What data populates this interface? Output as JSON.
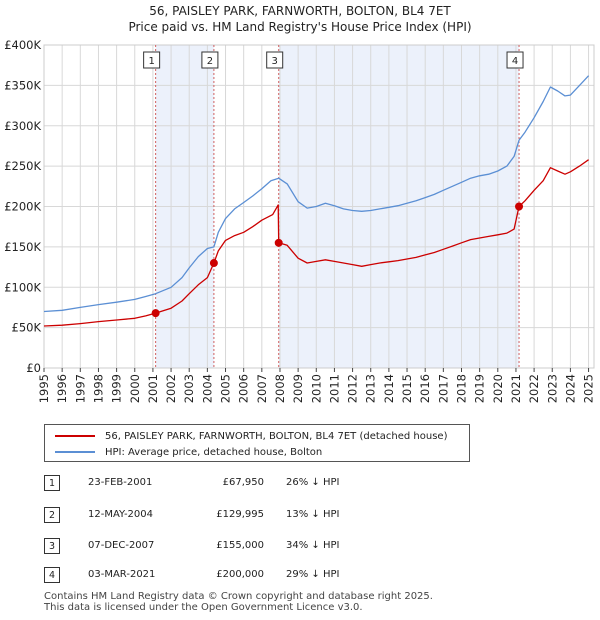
{
  "chart_data": {
    "type": "line",
    "title": "56, PAISLEY PARK, FARNWORTH, BOLTON, BL4 7ET",
    "subtitle": "Price paid vs. HM Land Registry's House Price Index (HPI)",
    "xlabel": "",
    "ylabel": "",
    "xlim": [
      1995,
      2025.3
    ],
    "ylim": [
      0,
      400000
    ],
    "y_ticks": [
      {
        "value": 0,
        "label": "£0"
      },
      {
        "value": 50000,
        "label": "£50K"
      },
      {
        "value": 100000,
        "label": "£100K"
      },
      {
        "value": 150000,
        "label": "£150K"
      },
      {
        "value": 200000,
        "label": "£200K"
      },
      {
        "value": 250000,
        "label": "£250K"
      },
      {
        "value": 300000,
        "label": "£300K"
      },
      {
        "value": 350000,
        "label": "£350K"
      },
      {
        "value": 400000,
        "label": "£400K"
      }
    ],
    "x_ticks": [
      "1995",
      "1996",
      "1997",
      "1998",
      "1999",
      "2000",
      "2001",
      "2002",
      "2003",
      "2004",
      "2005",
      "2006",
      "2007",
      "2008",
      "2009",
      "2010",
      "2011",
      "2012",
      "2013",
      "2014",
      "2015",
      "2016",
      "2017",
      "2018",
      "2019",
      "2020",
      "2021",
      "2022",
      "2023",
      "2024",
      "2025"
    ],
    "shaded_ranges": [
      [
        2001.15,
        2004.36
      ],
      [
        2007.93,
        2021.17
      ]
    ],
    "series": [
      {
        "name": "56, PAISLEY PARK, FARNWORTH, BOLTON, BL4 7ET (detached house)",
        "color": "#cc0000",
        "points": [
          [
            1995.0,
            52000
          ],
          [
            1996.0,
            53000
          ],
          [
            1997.0,
            55000
          ],
          [
            1998.0,
            57500
          ],
          [
            1999.0,
            59500
          ],
          [
            2000.0,
            61500
          ],
          [
            2000.6,
            64500
          ],
          [
            2001.15,
            67950
          ],
          [
            2002.0,
            74000
          ],
          [
            2002.6,
            83000
          ],
          [
            2003.0,
            92000
          ],
          [
            2003.5,
            103000
          ],
          [
            2004.0,
            112000
          ],
          [
            2004.36,
            129995
          ],
          [
            2004.6,
            145000
          ],
          [
            2005.0,
            158000
          ],
          [
            2005.5,
            164000
          ],
          [
            2006.0,
            168000
          ],
          [
            2006.5,
            175000
          ],
          [
            2007.0,
            183000
          ],
          [
            2007.6,
            190000
          ],
          [
            2007.9,
            202000
          ],
          [
            2007.93,
            155000
          ],
          [
            2008.4,
            152000
          ],
          [
            2009.0,
            136000
          ],
          [
            2009.5,
            130000
          ],
          [
            2010.0,
            132000
          ],
          [
            2010.5,
            134000
          ],
          [
            2011.0,
            132000
          ],
          [
            2011.5,
            130000
          ],
          [
            2012.0,
            128000
          ],
          [
            2012.5,
            126000
          ],
          [
            2013.0,
            128000
          ],
          [
            2013.5,
            130000
          ],
          [
            2014.0,
            131500
          ],
          [
            2014.5,
            133000
          ],
          [
            2015.0,
            135000
          ],
          [
            2015.5,
            137000
          ],
          [
            2016.0,
            140000
          ],
          [
            2016.5,
            143000
          ],
          [
            2017.0,
            147000
          ],
          [
            2017.5,
            151000
          ],
          [
            2018.0,
            155000
          ],
          [
            2018.5,
            159000
          ],
          [
            2019.0,
            161000
          ],
          [
            2019.5,
            163000
          ],
          [
            2020.0,
            165000
          ],
          [
            2020.5,
            167000
          ],
          [
            2020.9,
            172000
          ],
          [
            2021.17,
            200000
          ],
          [
            2021.5,
            207000
          ],
          [
            2022.0,
            220000
          ],
          [
            2022.5,
            232000
          ],
          [
            2022.9,
            248000
          ],
          [
            2023.3,
            244000
          ],
          [
            2023.7,
            240000
          ],
          [
            2024.0,
            243000
          ],
          [
            2024.5,
            250000
          ],
          [
            2025.0,
            258000
          ]
        ]
      },
      {
        "name": "HPI: Average price, detached house, Bolton",
        "color": "#5b8fd4",
        "points": [
          [
            1995.0,
            70000
          ],
          [
            1996.0,
            71500
          ],
          [
            1997.0,
            75000
          ],
          [
            1998.0,
            78500
          ],
          [
            1999.0,
            81500
          ],
          [
            2000.0,
            85000
          ],
          [
            2000.6,
            88500
          ],
          [
            2001.15,
            92000
          ],
          [
            2002.0,
            100000
          ],
          [
            2002.6,
            112000
          ],
          [
            2003.0,
            124000
          ],
          [
            2003.5,
            138000
          ],
          [
            2004.0,
            148000
          ],
          [
            2004.36,
            150000
          ],
          [
            2004.6,
            168000
          ],
          [
            2005.0,
            185000
          ],
          [
            2005.5,
            197000
          ],
          [
            2006.0,
            205000
          ],
          [
            2006.5,
            213000
          ],
          [
            2007.0,
            222000
          ],
          [
            2007.5,
            232000
          ],
          [
            2007.93,
            235000
          ],
          [
            2008.4,
            228000
          ],
          [
            2009.0,
            206000
          ],
          [
            2009.5,
            198000
          ],
          [
            2010.0,
            200000
          ],
          [
            2010.5,
            204000
          ],
          [
            2011.0,
            201000
          ],
          [
            2011.5,
            197000
          ],
          [
            2012.0,
            195000
          ],
          [
            2012.5,
            194000
          ],
          [
            2013.0,
            195000
          ],
          [
            2013.5,
            197000
          ],
          [
            2014.0,
            199000
          ],
          [
            2014.5,
            201000
          ],
          [
            2015.0,
            204000
          ],
          [
            2015.5,
            207000
          ],
          [
            2016.0,
            211000
          ],
          [
            2016.5,
            215000
          ],
          [
            2017.0,
            220000
          ],
          [
            2017.5,
            225000
          ],
          [
            2018.0,
            230000
          ],
          [
            2018.5,
            235000
          ],
          [
            2019.0,
            238000
          ],
          [
            2019.5,
            240000
          ],
          [
            2020.0,
            244000
          ],
          [
            2020.5,
            250000
          ],
          [
            2020.9,
            262000
          ],
          [
            2021.17,
            282000
          ],
          [
            2021.5,
            292000
          ],
          [
            2022.0,
            310000
          ],
          [
            2022.5,
            330000
          ],
          [
            2022.9,
            348000
          ],
          [
            2023.3,
            343000
          ],
          [
            2023.7,
            337000
          ],
          [
            2024.0,
            338000
          ],
          [
            2024.5,
            350000
          ],
          [
            2025.0,
            362000
          ]
        ]
      }
    ],
    "sales": [
      {
        "id": "1",
        "x": 2001.15,
        "y": 67950
      },
      {
        "id": "2",
        "x": 2004.36,
        "y": 129995
      },
      {
        "id": "3",
        "x": 2007.93,
        "y": 155000
      },
      {
        "id": "4",
        "x": 2021.17,
        "y": 200000
      }
    ]
  },
  "legend": {
    "property_label": "56, PAISLEY PARK, FARNWORTH, BOLTON, BL4 7ET (detached house)",
    "hpi_label": "HPI: Average price, detached house, Bolton"
  },
  "transactions": [
    {
      "num": "1",
      "date": "23-FEB-2001",
      "price": "£67,950",
      "hpi": "26% ↓ HPI"
    },
    {
      "num": "2",
      "date": "12-MAY-2004",
      "price": "£129,995",
      "hpi": "13% ↓ HPI"
    },
    {
      "num": "3",
      "date": "07-DEC-2007",
      "price": "£155,000",
      "hpi": "34% ↓ HPI"
    },
    {
      "num": "4",
      "date": "03-MAR-2021",
      "price": "£200,000",
      "hpi": "29% ↓ HPI"
    }
  ],
  "footer": {
    "line1": "Contains HM Land Registry data © Crown copyright and database right 2025.",
    "line2": "This data is licensed under the Open Government Licence v3.0."
  },
  "colors": {
    "property": "#cc0000",
    "hpi": "#5b8fd4",
    "shade": "#dce6f7"
  }
}
